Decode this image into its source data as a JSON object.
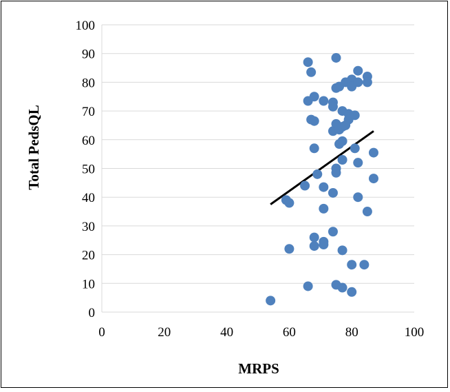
{
  "chart_data": {
    "type": "scatter",
    "title": "",
    "xlabel": "MRPS",
    "ylabel": "Total PedsQL",
    "xlim": [
      0,
      100
    ],
    "ylim": [
      0,
      100
    ],
    "x_ticks": [
      "0",
      "20",
      "40",
      "60",
      "80",
      "100"
    ],
    "y_ticks": [
      "0",
      "10",
      "20",
      "30",
      "40",
      "50",
      "60",
      "70",
      "80",
      "90",
      "100"
    ],
    "grid": "horizontal major gridlines",
    "legend": "none",
    "point_color": "#4f81bd",
    "trendline_color": "#000000",
    "series": [
      {
        "points": [
          [
            54,
            4
          ],
          [
            59,
            39
          ],
          [
            60,
            38
          ],
          [
            60,
            22
          ],
          [
            65,
            44
          ],
          [
            66,
            87
          ],
          [
            66,
            73.5
          ],
          [
            66,
            9
          ],
          [
            67,
            83.5
          ],
          [
            67,
            67
          ],
          [
            68,
            75
          ],
          [
            68,
            66.5
          ],
          [
            68,
            57
          ],
          [
            68,
            26
          ],
          [
            68,
            23
          ],
          [
            69,
            48
          ],
          [
            71,
            73.5
          ],
          [
            71,
            43.5
          ],
          [
            71,
            36
          ],
          [
            71,
            24.5
          ],
          [
            71,
            23.5
          ],
          [
            74,
            73
          ],
          [
            74,
            71.5
          ],
          [
            74,
            63
          ],
          [
            74,
            41.5
          ],
          [
            74,
            28
          ],
          [
            75,
            88.5
          ],
          [
            75,
            78
          ],
          [
            75,
            65.5
          ],
          [
            75,
            50
          ],
          [
            75,
            48.5
          ],
          [
            75,
            9.5
          ],
          [
            76,
            78.5
          ],
          [
            76,
            58.5
          ],
          [
            76,
            63.5
          ],
          [
            77,
            70
          ],
          [
            77,
            59.5
          ],
          [
            77,
            53
          ],
          [
            77,
            21.5
          ],
          [
            77,
            8.5
          ],
          [
            77,
            64.5
          ],
          [
            78,
            80
          ],
          [
            78,
            65
          ],
          [
            79,
            69
          ],
          [
            79,
            67
          ],
          [
            80,
            81
          ],
          [
            80,
            78.5
          ],
          [
            80,
            16.5
          ],
          [
            80,
            7
          ],
          [
            81,
            68.5
          ],
          [
            81,
            57
          ],
          [
            82,
            84
          ],
          [
            82,
            80
          ],
          [
            82,
            52
          ],
          [
            82,
            40
          ],
          [
            84,
            16.5
          ],
          [
            85,
            82
          ],
          [
            85,
            80
          ],
          [
            85,
            35
          ],
          [
            87,
            55.5
          ],
          [
            87,
            46.5
          ]
        ]
      }
    ],
    "trendline": {
      "x": [
        54,
        87
      ],
      "y": [
        37.5,
        63
      ]
    }
  }
}
